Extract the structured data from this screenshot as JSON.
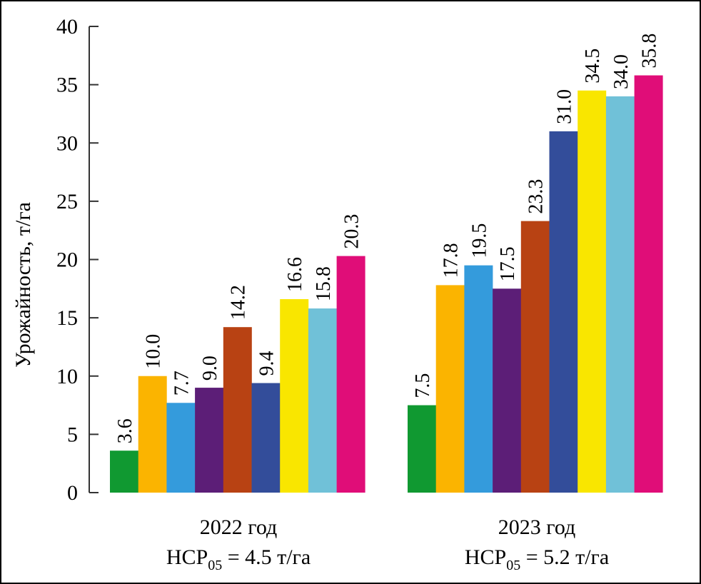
{
  "chart_data": {
    "type": "bar",
    "ylabel": "Урожайность, т/га",
    "ylim": [
      0,
      40
    ],
    "yticks": [
      0,
      5,
      10,
      15,
      20,
      25,
      30,
      35,
      40
    ],
    "grid": false,
    "groups": [
      {
        "label": "2022 год",
        "lsd_prefix": "НСР",
        "lsd_sub": "05",
        "lsd_value": " = 4.5 т/га",
        "values": [
          3.6,
          10.0,
          7.7,
          9.0,
          14.2,
          9.4,
          16.6,
          15.8,
          20.3
        ],
        "value_labels": [
          "3.6",
          "10.0",
          "7.7",
          "9.0",
          "14.2",
          "9.4",
          "16.6",
          "15.8",
          "20.3"
        ]
      },
      {
        "label": "2023 год",
        "lsd_prefix": "НСР",
        "lsd_sub": "05",
        "lsd_value": " = 5.2 т/га",
        "values": [
          7.5,
          17.8,
          19.5,
          17.5,
          23.3,
          31.0,
          34.5,
          34.0,
          35.8
        ],
        "value_labels": [
          "7.5",
          "17.8",
          "19.5",
          "17.5",
          "23.3",
          "31.0",
          "34.5",
          "34.0",
          "35.8"
        ]
      }
    ],
    "colors": [
      "#109931",
      "#fbb400",
      "#349bdc",
      "#5c1e77",
      "#b84213",
      "#334d9a",
      "#f9e600",
      "#70c1d8",
      "#e00d78"
    ]
  }
}
